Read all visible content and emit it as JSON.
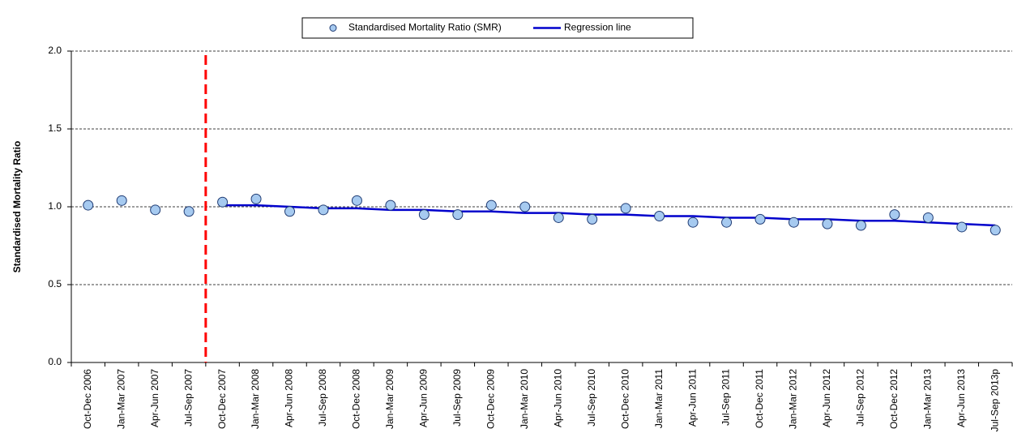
{
  "chart_data": {
    "type": "line",
    "y_label": "Standardised Mortality Ratio",
    "categories": [
      "Oct-Dec 2006",
      "Jan-Mar 2007",
      "Apr-Jun 2007",
      "Jul-Sep 2007",
      "Oct-Dec 2007",
      "Jan-Mar 2008",
      "Apr-Jun 2008",
      "Jul-Sep 2008",
      "Oct-Dec 2008",
      "Jan-Mar 2009",
      "Apr-Jun 2009",
      "Jul-Sep 2009",
      "Oct-Dec 2009",
      "Jan-Mar 2010",
      "Apr-Jun 2010",
      "Jul-Sep 2010",
      "Oct-Dec 2010",
      "Jan-Mar 2011",
      "Apr-Jun 2011",
      "Jul-Sep 2011",
      "Oct-Dec 2011",
      "Jan-Mar 2012",
      "Apr-Jun 2012",
      "Jul-Sep 2012",
      "Oct-Dec 2012",
      "Jan-Mar 2013",
      "Apr-Jun 2013",
      "Jul-Sep 2013p"
    ],
    "series": [
      {
        "name": "Standardised Mortality Ratio (SMR)",
        "color": "#a6caf0",
        "marker": "circle",
        "values": [
          1.01,
          1.04,
          0.98,
          0.97,
          1.03,
          1.05,
          0.97,
          0.98,
          1.04,
          1.01,
          0.95,
          0.95,
          1.01,
          1.0,
          0.93,
          0.92,
          0.99,
          0.94,
          0.9,
          0.9,
          0.92,
          0.9,
          0.89,
          0.88,
          0.95,
          0.93,
          0.87,
          0.85
        ]
      },
      {
        "name": "Regression line",
        "color": "#0000cc",
        "marker": "line",
        "values": [
          null,
          null,
          null,
          null,
          1.01,
          1.01,
          1.0,
          0.99,
          0.99,
          0.98,
          0.98,
          0.97,
          0.97,
          0.96,
          0.96,
          0.95,
          0.95,
          0.94,
          0.94,
          0.93,
          0.93,
          0.92,
          0.92,
          0.91,
          0.91,
          0.9,
          0.89,
          0.88
        ]
      }
    ],
    "ylim": [
      0,
      2
    ],
    "yticks": [
      {
        "value": 0,
        "label": "0.0"
      },
      {
        "value": 0.5,
        "label": "0.5"
      },
      {
        "value": 1,
        "label": "1.0"
      },
      {
        "value": 1.5,
        "label": "1.5"
      },
      {
        "value": 2,
        "label": "2.0"
      }
    ],
    "grid": true
  }
}
